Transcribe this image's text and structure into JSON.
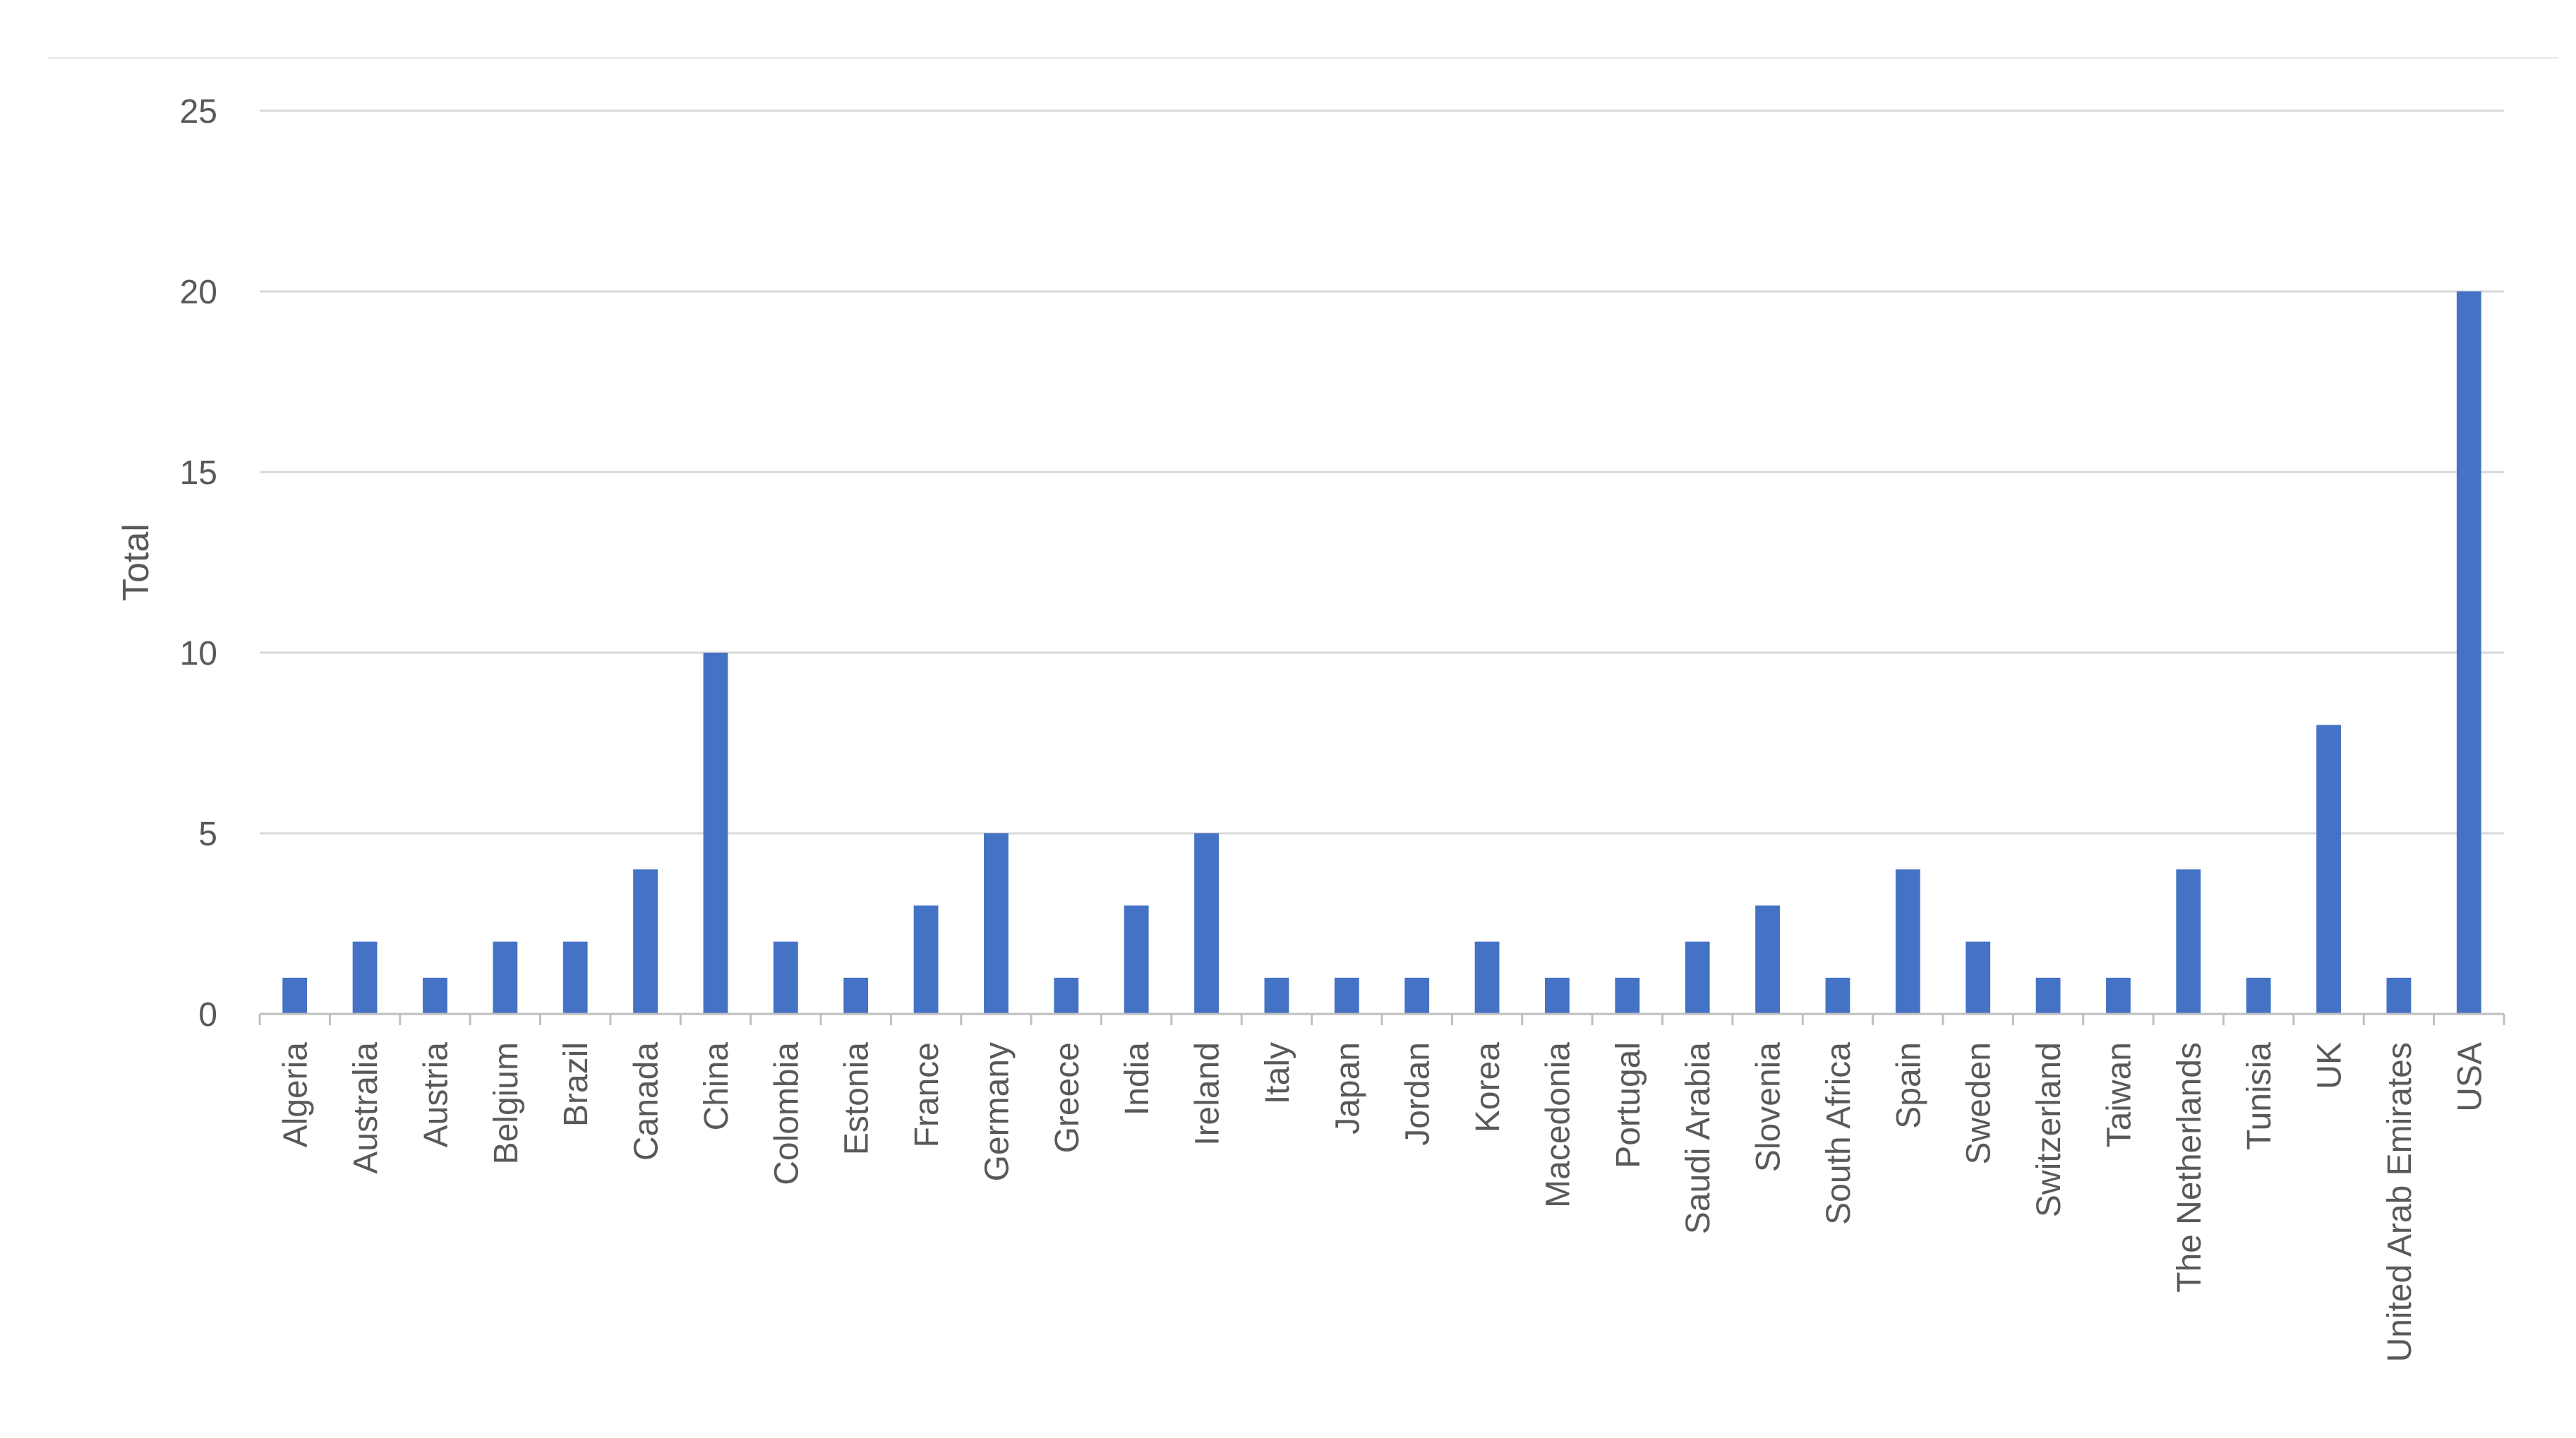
{
  "chart_data": {
    "type": "bar",
    "title": "",
    "xlabel": "",
    "ylabel": "Total",
    "ylim": [
      0,
      25
    ],
    "yticks": [
      0,
      5,
      10,
      15,
      20,
      25
    ],
    "grid": true,
    "legend": "none",
    "bar_color": "#4472C4",
    "grid_color": "#D9D9D9",
    "text_color": "#595959",
    "categories": [
      "Algeria",
      "Australia",
      "Austria",
      "Belgium",
      "Brazil",
      "Canada",
      "China",
      "Colombia",
      "Estonia",
      "France",
      "Germany",
      "Greece",
      "India",
      "Ireland",
      "Italy",
      "Japan",
      "Jordan",
      "Korea",
      "Macedonia",
      "Portugal",
      "Saudi Arabia",
      "Slovenia",
      "South Africa",
      "Spain",
      "Sweden",
      "Switzerland",
      "Taiwan",
      "The Netherlands",
      "Tunisia",
      "UK",
      "United Arab Emirates",
      "USA"
    ],
    "values": [
      1,
      2,
      1,
      2,
      2,
      4,
      10,
      2,
      1,
      3,
      5,
      1,
      3,
      5,
      1,
      1,
      1,
      2,
      1,
      1,
      2,
      3,
      1,
      4,
      2,
      1,
      1,
      4,
      1,
      8,
      1,
      20
    ]
  }
}
